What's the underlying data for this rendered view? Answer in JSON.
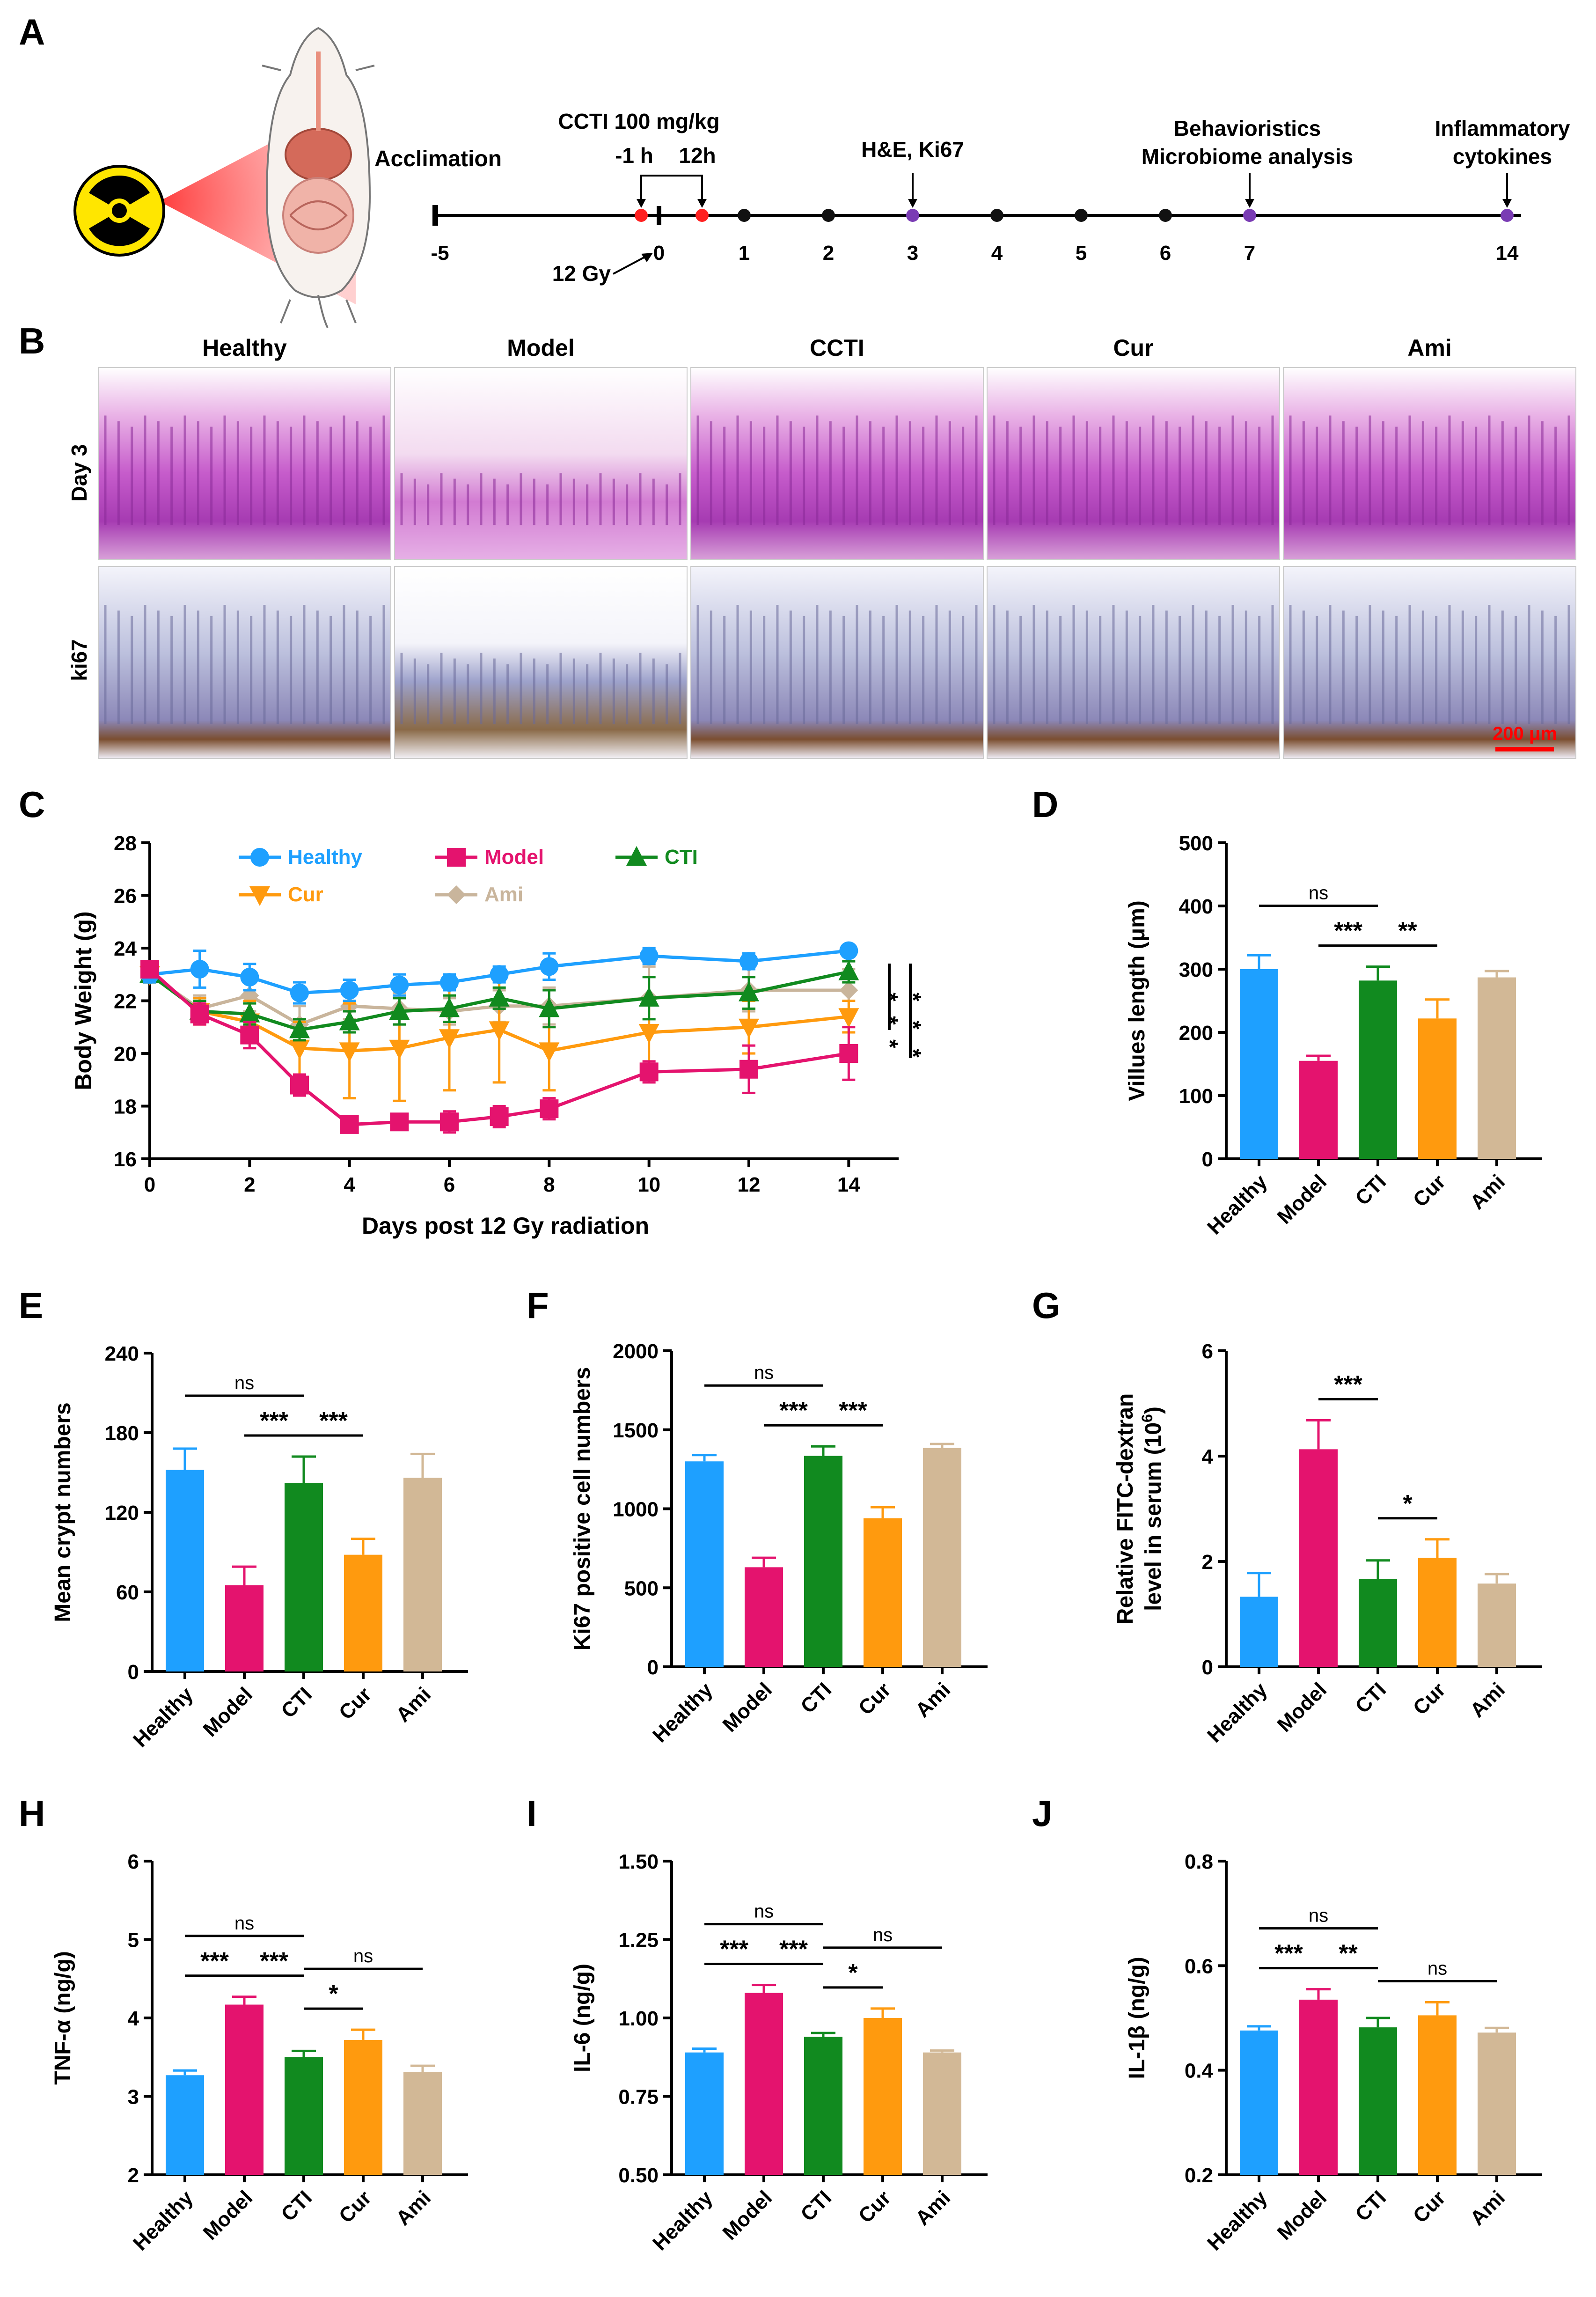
{
  "figure_colors": {
    "healthy": "#1ea0ff",
    "model": "#e4136e",
    "ccti": "#118a1f",
    "cur": "#ff9a0e",
    "ami": "#d2b896",
    "histo_he": "#c04fc0",
    "histo_ki67": "#b9b9d8",
    "scalebar": "#ff0000"
  },
  "panelA": {
    "letter": "A",
    "acclimation": "Acclimation",
    "dose": "CCTI 100 mg/kg",
    "minus1h": "-1 h",
    "twelve_h": "12h",
    "he_ki67": "H&E, Ki67",
    "behavior": "Behavioristics",
    "microbiome": "Microbiome analysis",
    "inflam1": "Inflammatory",
    "inflam2": "cytokines",
    "radiation": "12 Gy",
    "ticks": [
      "-5",
      "0",
      "1",
      "2",
      "3",
      "4",
      "5",
      "6",
      "7",
      "14"
    ],
    "mouse_icon": "mouse-icon",
    "radiation_icon": "radiation-hazard-icon"
  },
  "panelB": {
    "letter": "B",
    "groups": [
      "Healthy",
      "Model",
      "CCTI",
      "Cur",
      "Ami"
    ],
    "rows": [
      "Day 3",
      "ki67"
    ],
    "scalebar": "200 μm"
  },
  "chart_data": [
    {
      "id": "C",
      "type": "line",
      "title": "",
      "xlabel": "Days post 12 Gy radiation",
      "ylabel": "Body Weight (g)",
      "xlim": [
        0,
        15
      ],
      "ylim": [
        16,
        28
      ],
      "xticks": [
        0,
        2,
        4,
        6,
        8,
        10,
        12,
        14
      ],
      "yticks": [
        16,
        18,
        20,
        22,
        24,
        26,
        28
      ],
      "x": [
        0,
        1,
        2,
        3,
        4,
        5,
        6,
        7,
        8,
        10,
        12,
        14
      ],
      "series": [
        {
          "name": "Healthy",
          "color": "#1ea0ff",
          "marker": "circle",
          "values": [
            23.0,
            23.2,
            22.9,
            22.3,
            22.4,
            22.6,
            22.7,
            23.0,
            23.3,
            23.7,
            23.5,
            23.9
          ],
          "err": [
            0.3,
            0.7,
            0.5,
            0.4,
            0.4,
            0.4,
            0.3,
            0.3,
            0.5,
            0.3,
            0.3,
            0.2
          ]
        },
        {
          "name": "Model",
          "color": "#e4136e",
          "marker": "square",
          "values": [
            23.2,
            21.5,
            20.7,
            18.8,
            17.3,
            17.4,
            17.4,
            17.6,
            17.9,
            19.3,
            19.4,
            20.0
          ],
          "err": [
            0.3,
            0.4,
            0.5,
            0.4,
            0.2,
            0.3,
            0.4,
            0.4,
            0.4,
            0.4,
            0.9,
            1.0
          ]
        },
        {
          "name": "CTI",
          "color": "#118a1f",
          "marker": "triangle",
          "values": [
            23.0,
            21.6,
            21.5,
            20.9,
            21.2,
            21.6,
            21.7,
            22.1,
            21.7,
            22.1,
            22.3,
            23.1
          ],
          "err": [
            0.3,
            0.4,
            0.4,
            0.4,
            0.4,
            0.5,
            0.5,
            0.4,
            0.7,
            0.8,
            0.6,
            0.4
          ]
        },
        {
          "name": "Cur",
          "color": "#ff9a0e",
          "marker": "triangle-down",
          "values": [
            23.0,
            21.6,
            21.2,
            20.2,
            20.1,
            20.2,
            20.6,
            20.9,
            20.1,
            20.8,
            21.0,
            21.4
          ],
          "err": [
            0.3,
            0.5,
            0.8,
            1.0,
            1.8,
            2.0,
            2.0,
            2.0,
            1.5,
            1.2,
            1.0,
            0.6
          ]
        },
        {
          "name": "Ami",
          "color": "#c9b59c",
          "marker": "diamond",
          "values": [
            23.0,
            21.7,
            22.2,
            21.1,
            21.8,
            21.7,
            21.6,
            21.8,
            21.8,
            22.1,
            22.4,
            22.4
          ],
          "err": [
            0.3,
            0.5,
            0.6,
            0.7,
            0.5,
            0.6,
            0.5,
            0.6,
            0.7,
            1.2,
            0.8,
            0.8
          ]
        }
      ],
      "sig_label": "***",
      "sig_label2": "***"
    },
    {
      "id": "D",
      "type": "bar",
      "ylabel": "Villues length (μm)",
      "categories": [
        "Healthy",
        "Model",
        "CTI",
        "Cur",
        "Ami"
      ],
      "values": [
        300,
        155,
        282,
        222,
        287
      ],
      "err": [
        22,
        8,
        22,
        30,
        10
      ],
      "ylim": [
        0,
        500
      ],
      "yticks": [
        0,
        100,
        200,
        300,
        400,
        500
      ],
      "brackets": [
        {
          "from": 0,
          "to": 2,
          "label": "ns"
        },
        {
          "from": 1,
          "to": 2,
          "label": "***"
        },
        {
          "from": 2,
          "to": 3,
          "label": "**"
        }
      ]
    },
    {
      "id": "E",
      "type": "bar",
      "ylabel": "Mean crypt numbers",
      "categories": [
        "Healthy",
        "Model",
        "CTI",
        "Cur",
        "Ami"
      ],
      "values": [
        152,
        65,
        142,
        88,
        146
      ],
      "err": [
        16,
        14,
        20,
        12,
        18
      ],
      "ylim": [
        0,
        240
      ],
      "yticks": [
        0,
        60,
        120,
        180,
        240
      ],
      "brackets": [
        {
          "from": 0,
          "to": 2,
          "label": "ns"
        },
        {
          "from": 1,
          "to": 2,
          "label": "***"
        },
        {
          "from": 2,
          "to": 3,
          "label": "***"
        }
      ]
    },
    {
      "id": "F",
      "type": "bar",
      "ylabel": "Ki67 positive cell numbers",
      "categories": [
        "Healthy",
        "Model",
        "CTI",
        "Cur",
        "Ami"
      ],
      "values": [
        1300,
        630,
        1335,
        940,
        1385
      ],
      "err": [
        40,
        60,
        60,
        70,
        25
      ],
      "ylim": [
        0,
        2000
      ],
      "yticks": [
        0,
        500,
        1000,
        1500,
        2000
      ],
      "brackets": [
        {
          "from": 0,
          "to": 2,
          "label": "ns"
        },
        {
          "from": 1,
          "to": 2,
          "label": "***"
        },
        {
          "from": 2,
          "to": 3,
          "label": "***"
        }
      ]
    },
    {
      "id": "G",
      "type": "bar",
      "ylabel": "Relative FITC-dextran",
      "ylabel2": "level in serum (10",
      "ylabel2_sup": "6",
      "ylabel2_end": ")",
      "categories": [
        "Healthy",
        "Model",
        "CTI",
        "Cur",
        "Ami"
      ],
      "values": [
        1.33,
        4.13,
        1.67,
        2.07,
        1.58
      ],
      "err": [
        0.45,
        0.55,
        0.35,
        0.35,
        0.18
      ],
      "ylim": [
        0,
        6
      ],
      "yticks": [
        0,
        2,
        4,
        6
      ],
      "brackets": [
        {
          "from": 1,
          "to": 2,
          "label": "***"
        },
        {
          "from": 2,
          "to": 3,
          "label": "*"
        }
      ]
    },
    {
      "id": "H",
      "type": "bar",
      "ylabel": "TNF-α (ng/g)",
      "categories": [
        "Healthy",
        "Model",
        "CTI",
        "Cur",
        "Ami"
      ],
      "values": [
        3.27,
        4.17,
        3.5,
        3.72,
        3.31
      ],
      "err": [
        0.06,
        0.1,
        0.08,
        0.13,
        0.08
      ],
      "ylim": [
        2,
        6
      ],
      "yticks": [
        2,
        3,
        4,
        5,
        6
      ],
      "brackets": [
        {
          "from": 0,
          "to": 2,
          "label": "ns"
        },
        {
          "from": 1,
          "to": 2,
          "label": "***"
        },
        {
          "from": 0,
          "to": 1,
          "label": "***"
        },
        {
          "from": 2,
          "to": 4,
          "label": "ns"
        },
        {
          "from": 2,
          "to": 3,
          "label": "*"
        }
      ]
    },
    {
      "id": "I",
      "type": "bar",
      "ylabel": "IL-6 (ng/g)",
      "categories": [
        "Healthy",
        "Model",
        "CTI",
        "Cur",
        "Ami"
      ],
      "values": [
        0.89,
        1.08,
        0.94,
        1.0,
        0.89
      ],
      "err": [
        0.012,
        0.025,
        0.012,
        0.03,
        0.006
      ],
      "ylim": [
        0.5,
        1.5
      ],
      "yticks": [
        "0.50",
        "0.75",
        "1.00",
        "1.25",
        "1.50"
      ],
      "brackets": [
        {
          "from": 0,
          "to": 2,
          "label": "ns"
        },
        {
          "from": 2,
          "to": 4,
          "label": "ns"
        },
        {
          "from": 1,
          "to": 2,
          "label": "***"
        },
        {
          "from": 0,
          "to": 1,
          "label": "***"
        },
        {
          "from": 2,
          "to": 3,
          "label": "*"
        }
      ]
    },
    {
      "id": "J",
      "type": "bar",
      "ylabel": "IL-1β (ng/g)",
      "categories": [
        "Healthy",
        "Model",
        "CTI",
        "Cur",
        "Ami"
      ],
      "values": [
        0.476,
        0.535,
        0.482,
        0.505,
        0.472
      ],
      "err": [
        0.008,
        0.02,
        0.018,
        0.025,
        0.009
      ],
      "ylim": [
        0.2,
        0.8
      ],
      "yticks": [
        0.2,
        0.4,
        0.6,
        0.8
      ],
      "brackets": [
        {
          "from": 0,
          "to": 2,
          "label": "ns"
        },
        {
          "from": 0,
          "to": 1,
          "label": "***"
        },
        {
          "from": 1,
          "to": 2,
          "label": "**"
        },
        {
          "from": 2,
          "to": 4,
          "label": "ns"
        }
      ]
    }
  ]
}
